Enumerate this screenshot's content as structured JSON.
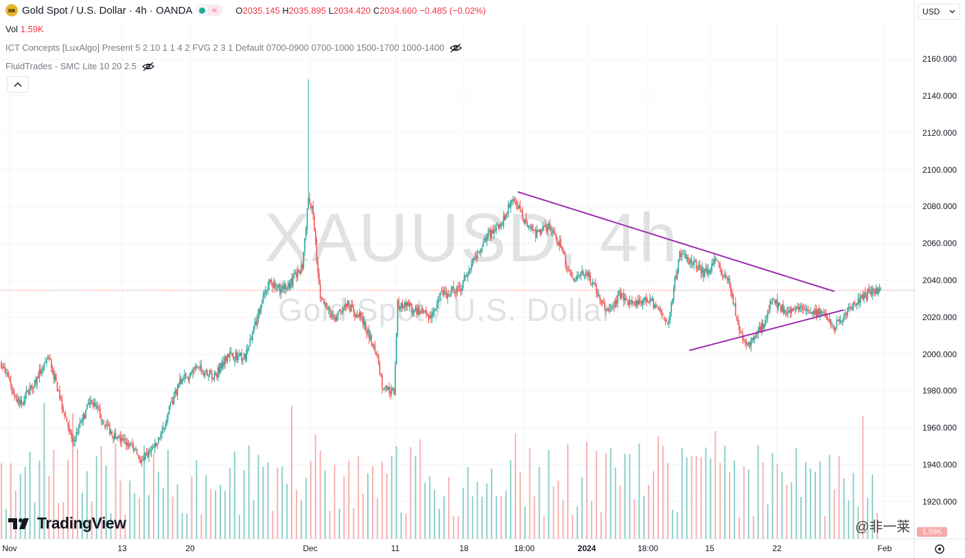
{
  "header": {
    "symbol_title": "Gold Spot / U.S. Dollar · 4h · OANDA",
    "approx_symbol": "≈",
    "ohlc": {
      "o_label": "O",
      "o_value": "2035.145",
      "h_label": "H",
      "h_value": "2035.895",
      "l_label": "L",
      "l_value": "2034.420",
      "c_label": "C",
      "c_value": "2034.660",
      "change": "−0.485 (−0.02%)"
    },
    "vol_label": "Vol",
    "vol_value": "1.59K",
    "indicator1": "ICT Concepts [LuxAlgo] Present 5 2 10 1 1 4 2 FVG 2 3 1 Default 0700-0900 0700-1000 1500-1700 1000-1400",
    "indicator2": "FluidTrades - SMC Lite 10 20 2.5",
    "currency_select": "USD"
  },
  "watermark": {
    "line1": "XAUUSD, 4h",
    "line2": "Gold Spot / U.S. Dollar"
  },
  "price_axis": [
    "2160.000",
    "2140.000",
    "2120.000",
    "2100.000",
    "2080.000",
    "2060.000",
    "2040.000",
    "2020.000",
    "2000.000",
    "1980.000",
    "1960.000",
    "1940.000",
    "1920.000"
  ],
  "time_axis": [
    {
      "label": "Nov",
      "bold": false
    },
    {
      "label": "13",
      "bold": false
    },
    {
      "label": "20",
      "bold": false
    },
    {
      "label": "Dec",
      "bold": false
    },
    {
      "label": "11",
      "bold": false
    },
    {
      "label": "18",
      "bold": false
    },
    {
      "label": "18:00",
      "bold": false
    },
    {
      "label": "2024",
      "bold": true
    },
    {
      "label": "18:00",
      "bold": false
    },
    {
      "label": "15",
      "bold": false
    },
    {
      "label": "22",
      "bold": false
    },
    {
      "label": "Feb",
      "bold": false
    }
  ],
  "branding": {
    "logo_text": "TradingView"
  },
  "social_watermark": "@非一莱",
  "volume_badge": "1.59K",
  "colors": {
    "up": "#26a69a",
    "down": "#ef5350",
    "trendline": "#9c27b0",
    "vol_up": "#80cbc4",
    "vol_down": "#f7a9a9"
  },
  "chart_data": {
    "type": "candlestick",
    "ylim": [
      1912,
      2170
    ],
    "last_price": 2034.66,
    "anchors": [
      [
        0,
        1995
      ],
      [
        15,
        1972
      ],
      [
        40,
        1998
      ],
      [
        60,
        1952
      ],
      [
        75,
        1975
      ],
      [
        95,
        1955
      ],
      [
        110,
        1950
      ],
      [
        118,
        1942
      ],
      [
        130,
        1950
      ],
      [
        150,
        1985
      ],
      [
        165,
        1992
      ],
      [
        180,
        1988
      ],
      [
        190,
        2000
      ],
      [
        205,
        1998
      ],
      [
        215,
        2020
      ],
      [
        225,
        2040
      ],
      [
        235,
        2035
      ],
      [
        245,
        2040
      ],
      [
        253,
        2048
      ],
      [
        258,
        2085
      ],
      [
        262,
        2075
      ],
      [
        268,
        2030
      ],
      [
        280,
        2018
      ],
      [
        290,
        2027
      ],
      [
        302,
        2020
      ],
      [
        316,
        2000
      ],
      [
        320,
        1983
      ],
      [
        330,
        1979
      ],
      [
        333,
        2027
      ],
      [
        345,
        2025
      ],
      [
        360,
        2020
      ],
      [
        370,
        2032
      ],
      [
        385,
        2035
      ],
      [
        400,
        2055
      ],
      [
        410,
        2065
      ],
      [
        420,
        2070
      ],
      [
        430,
        2085
      ],
      [
        440,
        2072
      ],
      [
        450,
        2065
      ],
      [
        460,
        2070
      ],
      [
        470,
        2058
      ],
      [
        480,
        2040
      ],
      [
        490,
        2045
      ],
      [
        498,
        2038
      ],
      [
        510,
        2022
      ],
      [
        520,
        2033
      ],
      [
        530,
        2026
      ],
      [
        545,
        2030
      ],
      [
        560,
        2017
      ],
      [
        570,
        2055
      ],
      [
        580,
        2050
      ],
      [
        590,
        2044
      ],
      [
        600,
        2050
      ],
      [
        612,
        2038
      ],
      [
        620,
        2012
      ],
      [
        628,
        2005
      ],
      [
        640,
        2016
      ],
      [
        648,
        2030
      ],
      [
        660,
        2022
      ],
      [
        672,
        2026
      ],
      [
        688,
        2022
      ],
      [
        700,
        2015
      ],
      [
        712,
        2025
      ],
      [
        722,
        2030
      ],
      [
        733,
        2035
      ],
      [
        738,
        2035
      ]
    ],
    "spike": {
      "index": 258,
      "high": 2149
    },
    "trendlines": [
      {
        "from": {
          "index": 434,
          "price": 2088
        },
        "to": {
          "index": 700,
          "price": 2034
        }
      },
      {
        "from": {
          "index": 578,
          "price": 2002
        },
        "to": {
          "index": 708,
          "price": 2024
        }
      }
    ]
  }
}
